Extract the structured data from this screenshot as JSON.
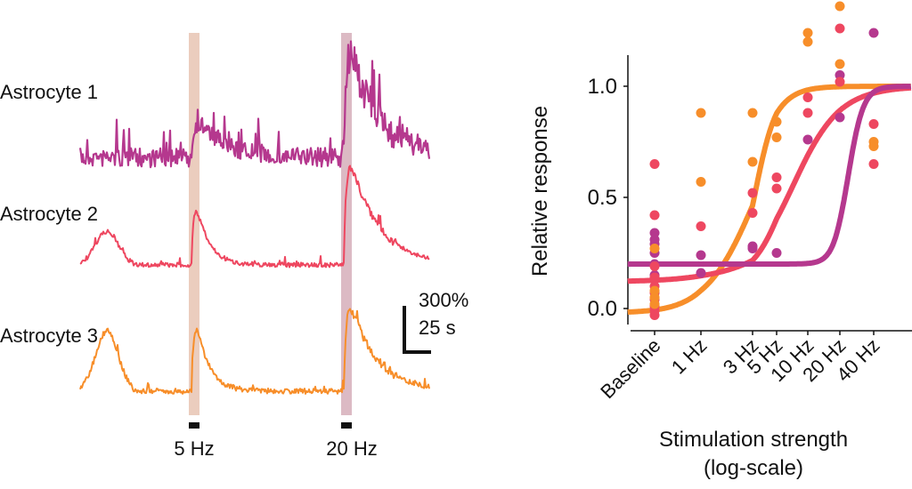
{
  "chart_data": [
    {
      "type": "line",
      "title": "",
      "description": "Calcium traces of three astrocytes with stimulation epochs",
      "traces": [
        {
          "name": "Astrocyte 1",
          "color": "#B5388E",
          "baseline_level": 0.05,
          "noise": "high",
          "responses": [
            {
              "stim": "5 Hz",
              "peak": 0.35
            },
            {
              "stim": "20 Hz",
              "peak": 1.0
            }
          ]
        },
        {
          "name": "Astrocyte 2",
          "color": "#EE4760",
          "baseline_level": 0.0,
          "noise": "low",
          "responses": [
            {
              "stim": "5 Hz",
              "peak": 0.7
            },
            {
              "stim": "20 Hz",
              "peak": 1.0
            }
          ]
        },
        {
          "name": "Astrocyte 3",
          "color": "#F78E2A",
          "baseline_level": 0.0,
          "noise": "low",
          "responses": [
            {
              "stim": "5 Hz",
              "peak": 0.8
            },
            {
              "stim": "20 Hz",
              "peak": 0.85
            }
          ]
        }
      ],
      "stimulations": [
        {
          "label": "5 Hz",
          "band_color": "#EBCDBE"
        },
        {
          "label": "20 Hz",
          "band_color": "#DCBAC4"
        }
      ],
      "scale_bar": {
        "vertical_label": "300%",
        "horizontal_label": "25 s"
      }
    },
    {
      "type": "scatter",
      "title": "",
      "xlabel": "Stimulation strength",
      "xlabel_sub": "(log-scale)",
      "ylabel": "Relative response",
      "categories": [
        "Baseline",
        "1 Hz",
        "3 Hz",
        "5 Hz",
        "10 Hz",
        "20 Hz",
        "40 Hz"
      ],
      "yticks": [
        "0.0",
        "0.5",
        "1.0"
      ],
      "ylim": [
        -0.1,
        1.4
      ],
      "grid": false,
      "series": [
        {
          "name": "Astrocyte 1",
          "color": "#B5388E",
          "points": {
            "Baseline": [
              0.34,
              0.31,
              0.29,
              0.25,
              0.2,
              0.15
            ],
            "1 Hz": [
              0.24,
              0.16
            ],
            "3 Hz": [
              0.28,
              0.27
            ],
            "5 Hz": [
              0.25
            ],
            "10 Hz": [
              0.76
            ],
            "20 Hz": [
              1.05,
              0.86
            ],
            "40 Hz": [
              1.24
            ]
          },
          "fit": {
            "bottom": 0.2,
            "top": 1.0,
            "midpoint_category_pos": 5.25,
            "slope": 4.5
          }
        },
        {
          "name": "Astrocyte 2",
          "color": "#EE4760",
          "points": {
            "Baseline": [
              0.65,
              0.42,
              0.19,
              0.14,
              0.1,
              0.07,
              0.04,
              0.01,
              -0.01,
              -0.03
            ],
            "1 Hz": [
              0.37
            ],
            "3 Hz": [
              0.52,
              0.43
            ],
            "5 Hz": [
              0.59,
              0.54
            ],
            "10 Hz": [
              0.95,
              0.88
            ],
            "20 Hz": [
              1.26,
              1.02
            ],
            "40 Hz": [
              0.83,
              0.65
            ]
          },
          "fit": {
            "bottom": 0.12,
            "top": 1.0,
            "midpoint_category_pos": 3.55,
            "slope": 1.35
          }
        },
        {
          "name": "Astrocyte 3",
          "color": "#F78E2A",
          "points": {
            "Baseline": [
              0.27,
              0.08,
              0.05,
              0.02
            ],
            "1 Hz": [
              0.88,
              0.57
            ],
            "3 Hz": [
              0.88,
              0.66
            ],
            "5 Hz": [
              0.84,
              0.77
            ],
            "10 Hz": [
              1.24,
              1.2
            ],
            "20 Hz": [
              1.36,
              1.1
            ],
            "40 Hz": [
              0.75,
              0.73
            ]
          },
          "fit": {
            "bottom": -0.02,
            "top": 1.0,
            "midpoint_category_pos": 2.05,
            "slope": 2.1
          }
        }
      ]
    }
  ]
}
